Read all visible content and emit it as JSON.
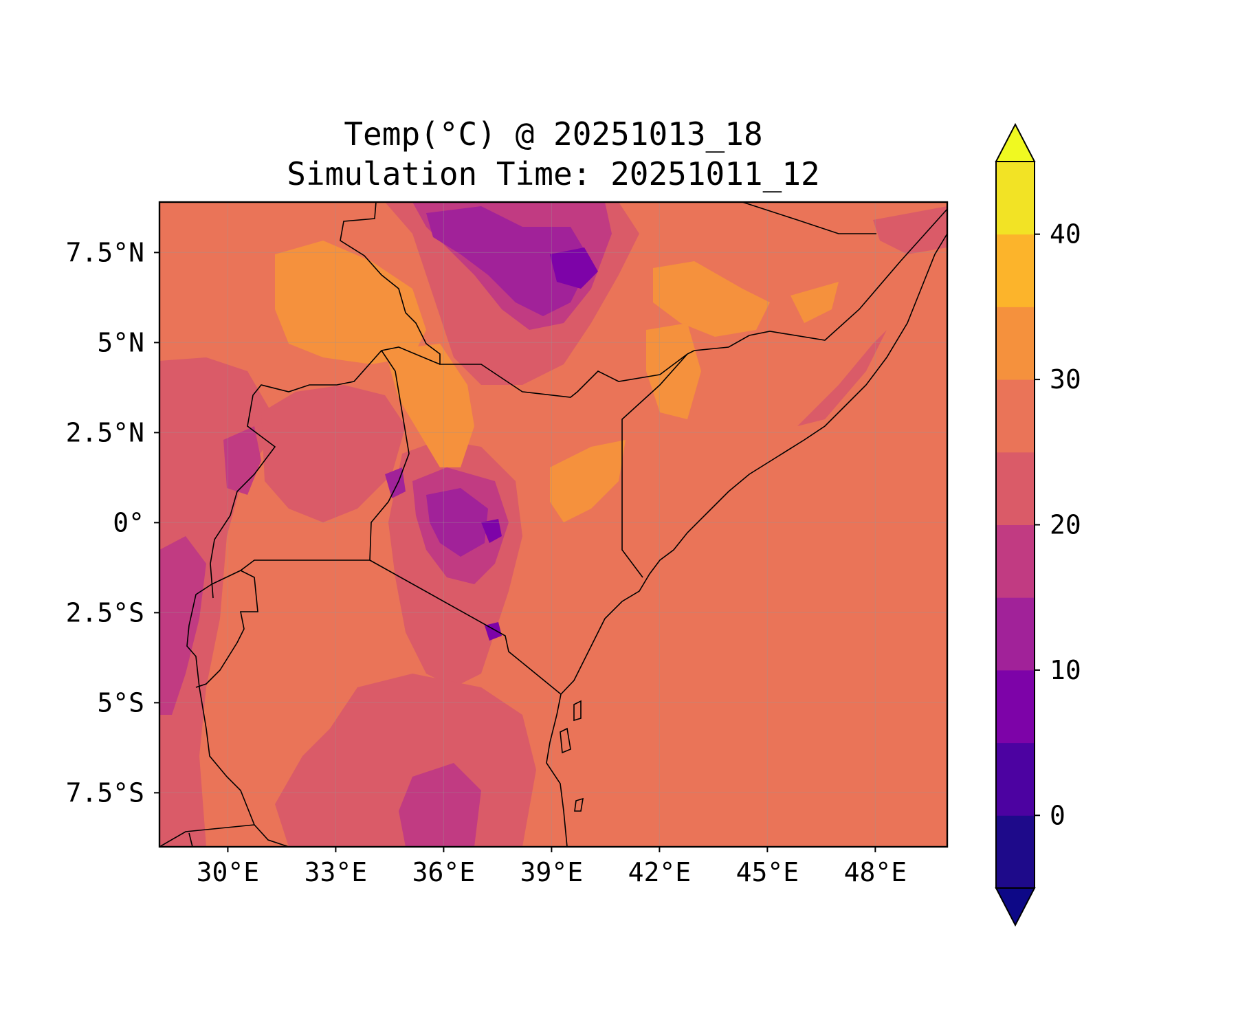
{
  "title": "Temp(°C) @ 20251013_18",
  "subtitle": "Simulation Time: 20251011_12",
  "map": {
    "extent": {
      "lon": [
        28.1,
        50.0
      ],
      "lat": [
        -9.0,
        8.9
      ]
    },
    "x_ticks": [
      {
        "value": 30,
        "label": "30°E"
      },
      {
        "value": 33,
        "label": "33°E"
      },
      {
        "value": 36,
        "label": "36°E"
      },
      {
        "value": 39,
        "label": "39°E"
      },
      {
        "value": 42,
        "label": "42°E"
      },
      {
        "value": 45,
        "label": "45°E"
      },
      {
        "value": 48,
        "label": "48°E"
      }
    ],
    "y_ticks": [
      {
        "value": 7.5,
        "label": "7.5°N"
      },
      {
        "value": 5,
        "label": "5°N"
      },
      {
        "value": 2.5,
        "label": "2.5°N"
      },
      {
        "value": 0,
        "label": "0°"
      },
      {
        "value": -2.5,
        "label": "2.5°S"
      },
      {
        "value": -5,
        "label": "5°S"
      },
      {
        "value": -7.5,
        "label": "7.5°S"
      }
    ],
    "gridlines": true,
    "background_level_color": "#ea7458"
  },
  "colorbar": {
    "levels": [
      -5,
      0,
      5,
      10,
      15,
      20,
      25,
      30,
      35,
      40,
      45
    ],
    "colors": [
      "#1b0c86",
      "#5102a3",
      "#8004a8",
      "#a92395",
      "#cc4778",
      "#e56b5d",
      "#f89540",
      "#fdc527",
      "#f0f921"
    ],
    "bin_colors": [
      "#1e0a8a",
      "#4c02a1",
      "#7d03a8",
      "#a12299",
      "#c13b82",
      "#da5b68",
      "#ea7458",
      "#f5913d",
      "#fcb42b",
      "#f2e325"
    ],
    "under_color": "#0d0887",
    "over_color": "#f0f921",
    "ticks": [
      {
        "value": 0,
        "label": "0"
      },
      {
        "value": 10,
        "label": "10"
      },
      {
        "value": 20,
        "label": "20"
      },
      {
        "value": 30,
        "label": "30"
      },
      {
        "value": 40,
        "label": "40"
      }
    ]
  }
}
